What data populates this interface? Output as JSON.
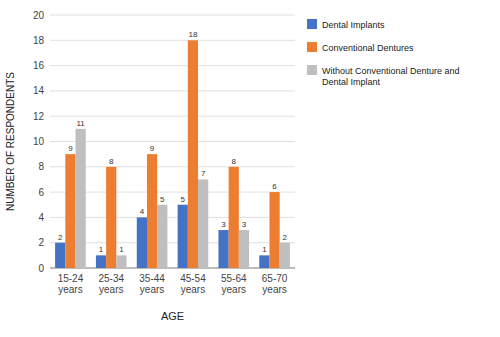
{
  "chart_data": {
    "type": "bar",
    "categories": [
      "15-24\nyears",
      "25-34\nyears",
      "35-44\nyears",
      "45-54\nyears",
      "55-64\nyears",
      "65-70\nyears"
    ],
    "series": [
      {
        "name": "Dental Implants",
        "color": "#4472C4",
        "values": [
          2,
          1,
          4,
          5,
          3,
          1
        ]
      },
      {
        "name": "Conventional Dentures",
        "color": "#ED7D31",
        "values": [
          9,
          8,
          9,
          18,
          8,
          6
        ]
      },
      {
        "name": "Without Conventional Denture and\nDental Implant",
        "color": "#BFBFBF",
        "values": [
          11,
          1,
          5,
          7,
          3,
          2
        ]
      }
    ],
    "xlabel": "AGE",
    "ylabel": "NUMBER OF RESPONDENTS",
    "ylim": [
      0,
      20
    ],
    "yticks": [
      0,
      2,
      4,
      6,
      8,
      10,
      12,
      14,
      16,
      18,
      20
    ],
    "grid": true,
    "legend": "right",
    "data_labels": true
  }
}
